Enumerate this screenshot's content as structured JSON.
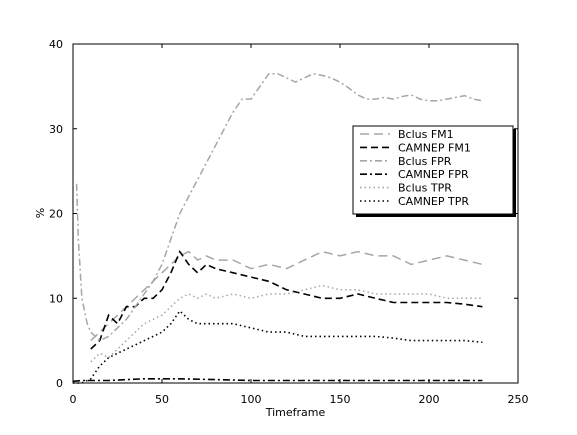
{
  "chart_data": {
    "type": "line",
    "title": "",
    "xlabel": "Timeframe",
    "ylabel": "%",
    "xlim": [
      0,
      250
    ],
    "ylim": [
      0,
      40
    ],
    "xticks": [
      0,
      50,
      100,
      150,
      200,
      250
    ],
    "yticks": [
      0,
      10,
      20,
      30,
      40
    ],
    "grid": false,
    "legend_position": "right",
    "series": [
      {
        "name": "Bclus FM1",
        "color": "#a6a6a6",
        "style": "long-dash",
        "x": [
          10,
          15,
          20,
          25,
          30,
          35,
          40,
          45,
          50,
          55,
          60,
          65,
          70,
          75,
          80,
          90,
          100,
          110,
          120,
          130,
          140,
          150,
          160,
          170,
          180,
          190,
          200,
          210,
          220,
          230
        ],
        "y": [
          5,
          6,
          7,
          8,
          9,
          10,
          11,
          12,
          13,
          14,
          15,
          15.5,
          14.5,
          15,
          14.5,
          14.5,
          13.5,
          14,
          13.5,
          14.5,
          15.5,
          15,
          15.5,
          15,
          15,
          14,
          14.5,
          15,
          14.5,
          14
        ]
      },
      {
        "name": "CAMNEP FM1",
        "color": "#000000",
        "style": "dash",
        "x": [
          10,
          15,
          20,
          25,
          30,
          35,
          40,
          45,
          50,
          55,
          60,
          65,
          70,
          75,
          80,
          90,
          100,
          110,
          120,
          130,
          140,
          150,
          160,
          170,
          180,
          190,
          200,
          210,
          220,
          230
        ],
        "y": [
          4,
          5,
          8,
          7,
          9,
          9,
          10,
          10,
          11,
          13,
          15.5,
          14,
          13,
          14,
          13.5,
          13,
          12.5,
          12,
          11,
          10.5,
          10,
          10,
          10.5,
          10,
          9.5,
          9.5,
          9.5,
          9.5,
          9.3,
          9
        ]
      },
      {
        "name": "Bclus FPR",
        "color": "#a6a6a6",
        "style": "dash-dot",
        "x": [
          2,
          3,
          5,
          8,
          10,
          15,
          20,
          25,
          30,
          35,
          40,
          45,
          50,
          55,
          60,
          65,
          70,
          75,
          80,
          85,
          90,
          95,
          100,
          105,
          110,
          115,
          120,
          125,
          130,
          135,
          140,
          145,
          150,
          155,
          160,
          165,
          170,
          175,
          180,
          185,
          190,
          195,
          200,
          205,
          210,
          215,
          220,
          225,
          230
        ],
        "y": [
          23.5,
          17,
          10,
          7,
          6,
          5,
          5.5,
          6.5,
          7.5,
          9,
          10.5,
          12,
          14,
          17,
          20,
          22,
          24,
          26,
          28,
          30,
          32,
          33.5,
          33.5,
          35,
          36.5,
          36.5,
          36,
          35.5,
          36,
          36.5,
          36.3,
          36,
          35.5,
          34.8,
          34,
          33.5,
          33.5,
          33.7,
          33.5,
          33.8,
          34,
          33.5,
          33.3,
          33.3,
          33.5,
          33.7,
          33.9,
          33.5,
          33.3
        ]
      },
      {
        "name": "CAMNEP FPR",
        "color": "#000000",
        "style": "dash-dot",
        "x": [
          0,
          5,
          10,
          20,
          30,
          40,
          50,
          60,
          80,
          100,
          120,
          140,
          160,
          180,
          200,
          220,
          230
        ],
        "y": [
          0.2,
          0.3,
          0.3,
          0.3,
          0.4,
          0.5,
          0.5,
          0.5,
          0.4,
          0.3,
          0.3,
          0.3,
          0.3,
          0.3,
          0.3,
          0.3,
          0.3
        ]
      },
      {
        "name": "Bclus TPR",
        "color": "#a6a6a6",
        "style": "dot",
        "x": [
          10,
          15,
          20,
          25,
          30,
          35,
          40,
          45,
          50,
          55,
          60,
          65,
          70,
          75,
          80,
          90,
          100,
          110,
          120,
          130,
          140,
          150,
          160,
          170,
          180,
          190,
          200,
          210,
          220,
          230
        ],
        "y": [
          2.5,
          3.5,
          3,
          4,
          5,
          6,
          7,
          7.5,
          8,
          9,
          10,
          10.5,
          10,
          10.5,
          10,
          10.5,
          10,
          10.5,
          10.5,
          11,
          11.5,
          11,
          11,
          10.5,
          10.5,
          10.5,
          10.5,
          10,
          10,
          10
        ]
      },
      {
        "name": "CAMNEP TPR",
        "color": "#000000",
        "style": "dot",
        "x": [
          0,
          5,
          10,
          15,
          20,
          25,
          30,
          35,
          40,
          45,
          50,
          55,
          60,
          65,
          70,
          75,
          80,
          90,
          100,
          110,
          120,
          130,
          140,
          150,
          160,
          170,
          180,
          190,
          200,
          210,
          220,
          230
        ],
        "y": [
          0,
          0,
          0.5,
          2,
          3,
          3.5,
          4,
          4.5,
          5,
          5.5,
          6,
          7,
          8.5,
          7.5,
          7,
          7,
          7,
          7,
          6.5,
          6,
          6,
          5.5,
          5.5,
          5.5,
          5.5,
          5.5,
          5.3,
          5,
          5,
          5,
          5,
          4.8
        ]
      }
    ]
  }
}
